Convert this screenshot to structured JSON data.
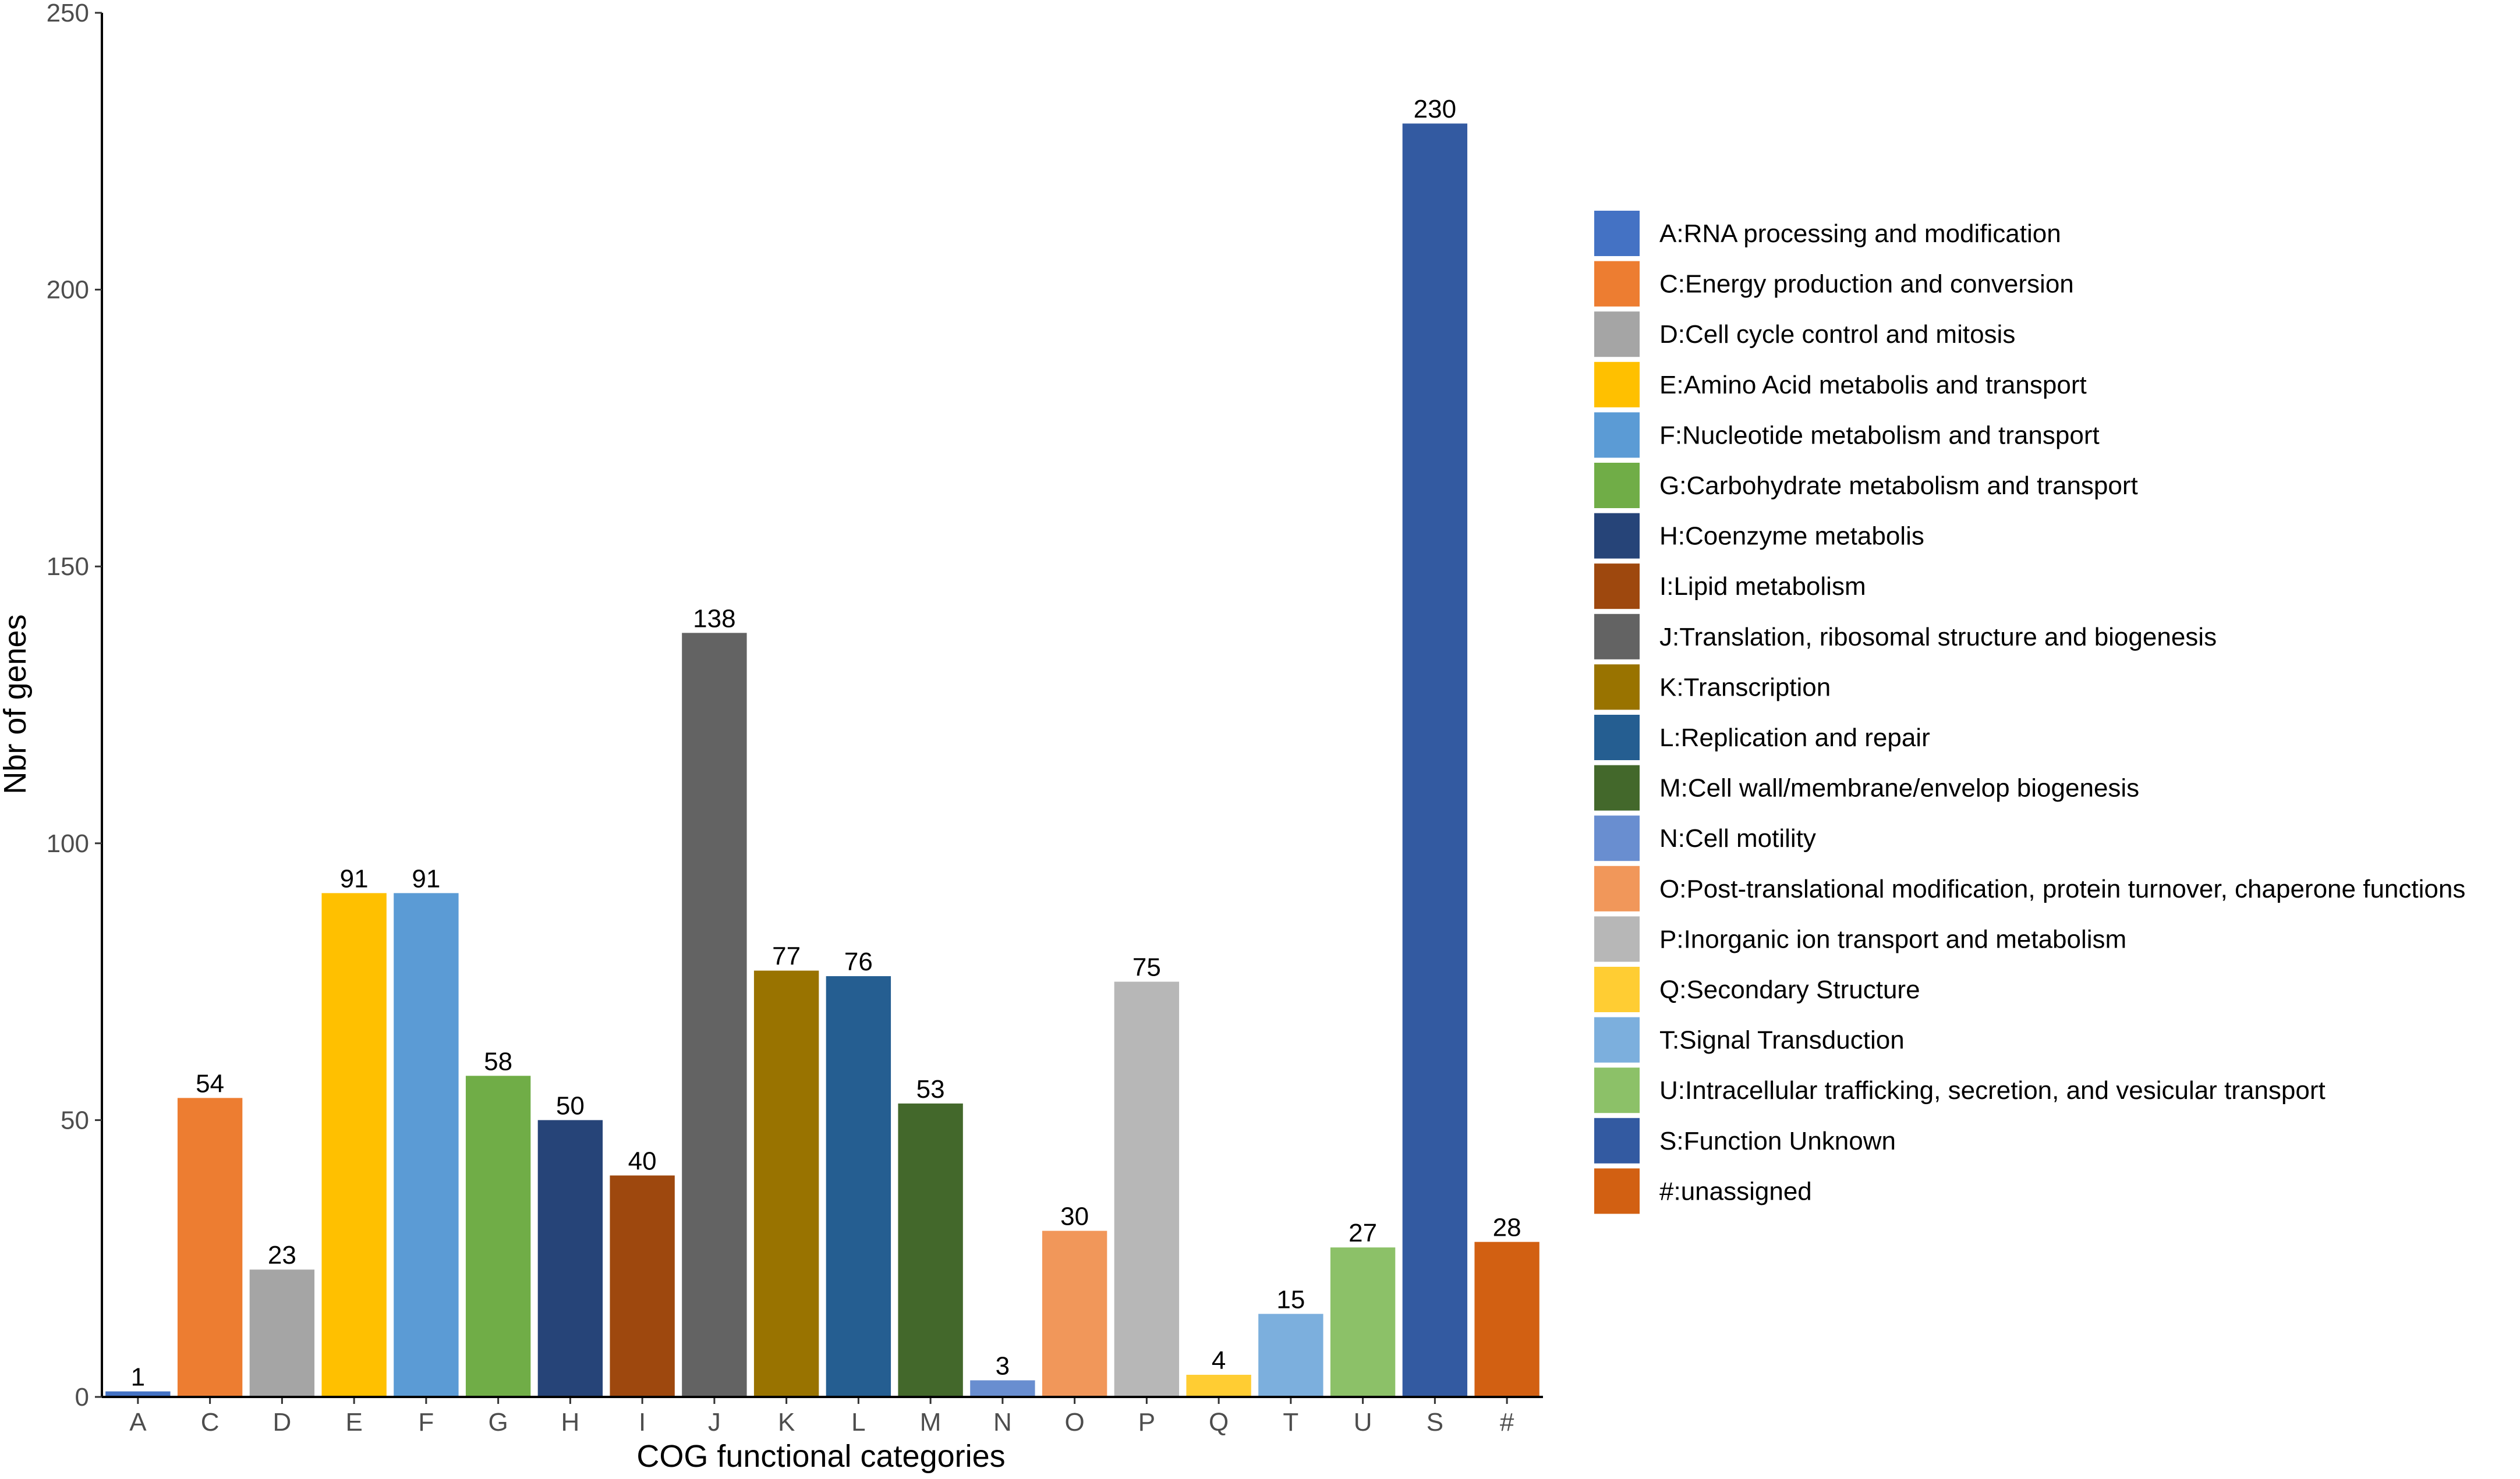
{
  "chart_data": {
    "type": "bar",
    "title": "",
    "xlabel": "COG functional categories",
    "ylabel": "Nbr of genes",
    "ylim": [
      0,
      250
    ],
    "yticks": [
      0,
      50,
      100,
      150,
      200,
      250
    ],
    "grid": false,
    "legend_position": "right",
    "categories": [
      "A",
      "C",
      "D",
      "E",
      "F",
      "G",
      "H",
      "I",
      "J",
      "K",
      "L",
      "M",
      "N",
      "O",
      "P",
      "Q",
      "T",
      "U",
      "S",
      "#"
    ],
    "values": [
      1,
      54,
      23,
      91,
      91,
      58,
      50,
      40,
      138,
      77,
      76,
      53,
      3,
      30,
      75,
      4,
      15,
      27,
      230,
      28
    ],
    "colors": [
      "#4472c4",
      "#ed7d31",
      "#a5a5a5",
      "#ffc000",
      "#5b9bd5",
      "#70ad47",
      "#264478",
      "#9e480e",
      "#636363",
      "#997300",
      "#255e91",
      "#43682b",
      "#698ed0",
      "#f1975a",
      "#b7b7b7",
      "#ffcd33",
      "#7cafdd",
      "#8cc168",
      "#335aa1",
      "#d26012"
    ],
    "legend": [
      "A:RNA processing and modification",
      "C:Energy production and conversion",
      "D:Cell cycle control and mitosis",
      "E:Amino Acid metabolis and transport",
      "F:Nucleotide metabolism and transport",
      "G:Carbohydrate metabolism and transport",
      "H:Coenzyme metabolis",
      "I:Lipid metabolism",
      "J:Translation, ribosomal structure and biogenesis",
      "K:Transcription",
      "L:Replication and repair",
      "M:Cell wall/membrane/envelop biogenesis",
      "N:Cell motility",
      "O:Post-translational modification, protein turnover, chaperone functions",
      "P:Inorganic ion transport and metabolism",
      "Q:Secondary Structure",
      "T:Signal Transduction",
      "U:Intracellular trafficking, secretion, and vesicular transport",
      "S:Function Unknown",
      "#:unassigned"
    ]
  }
}
